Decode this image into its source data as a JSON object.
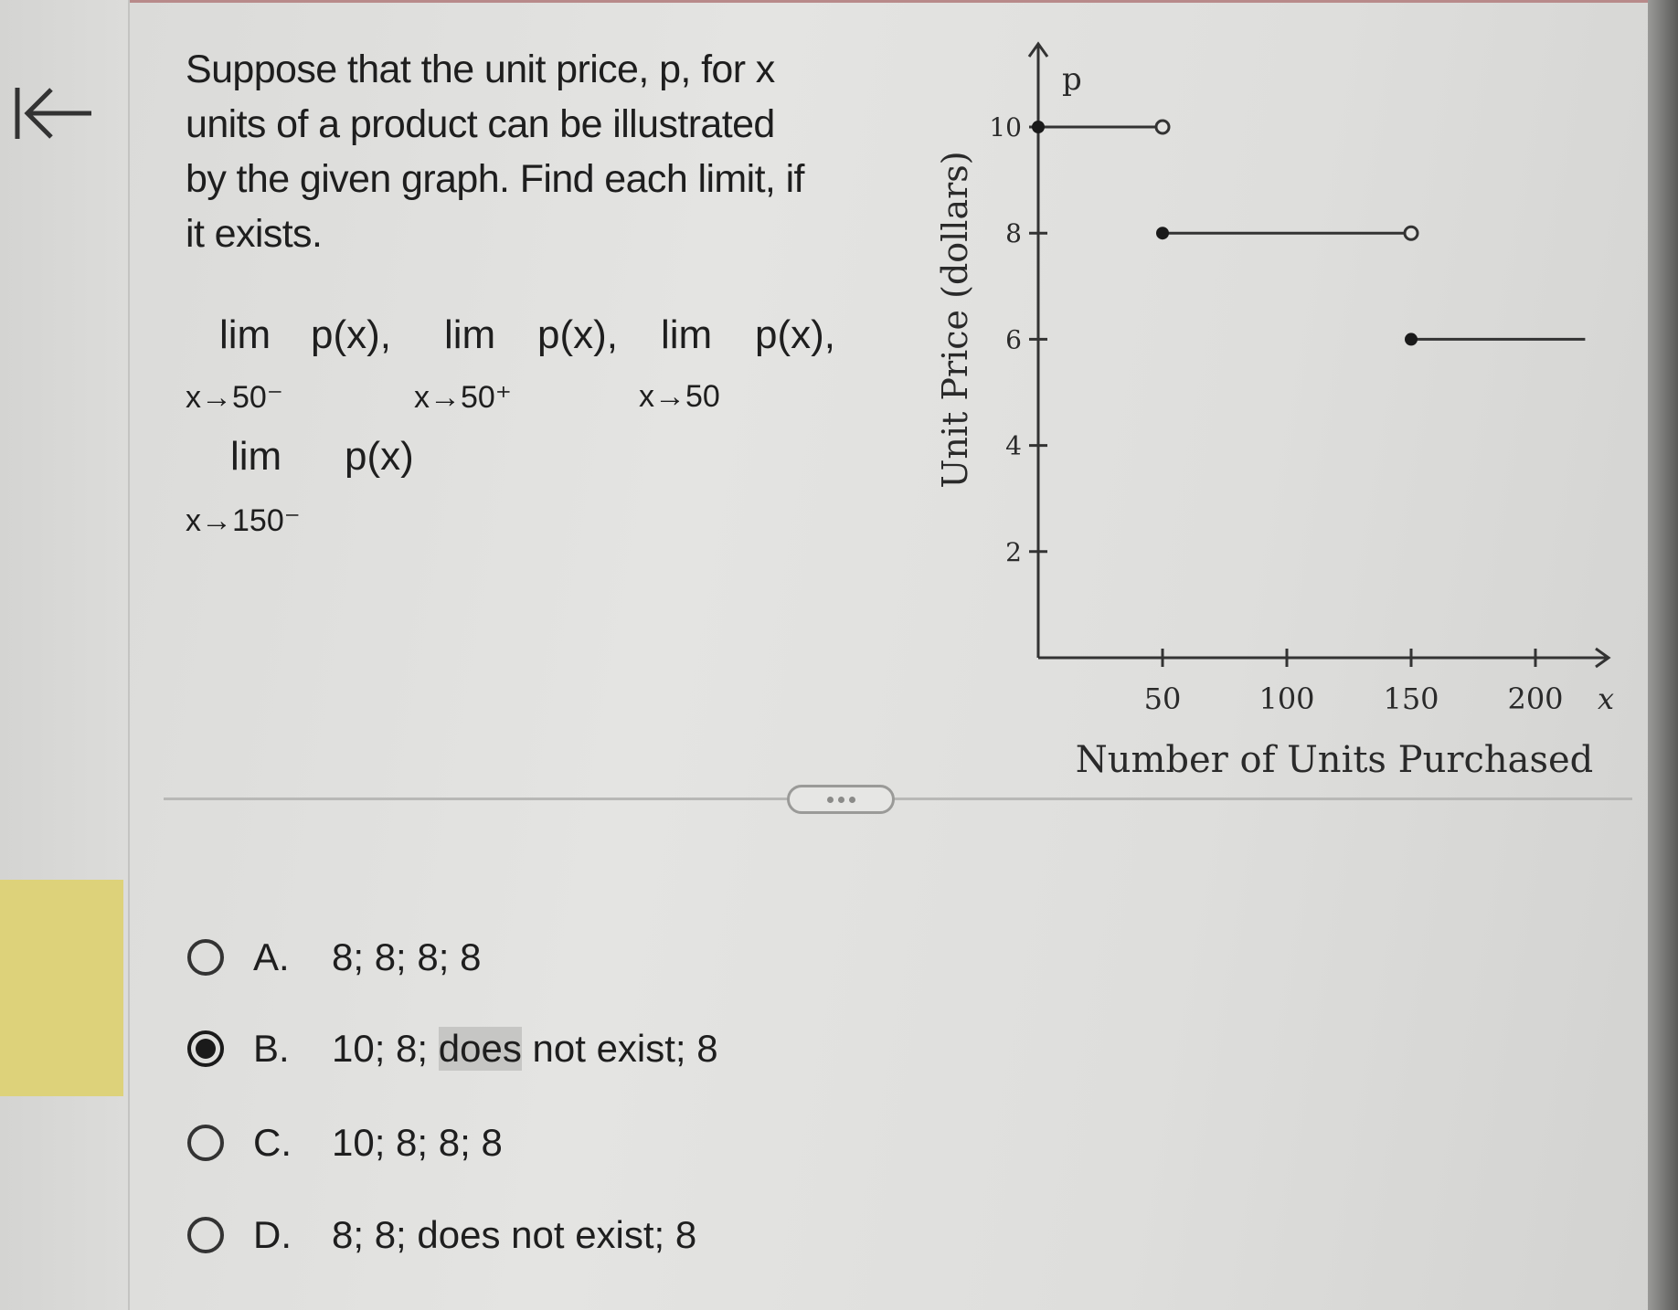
{
  "nav": {
    "back_icon": "collapse-left-arrow-icon"
  },
  "question": {
    "lines": [
      "Suppose that the unit price, p, for x",
      "units of a product can be illustrated",
      "by the given graph. Find each limit, if",
      "it exists."
    ],
    "limits": [
      {
        "lim": "lim",
        "func": "p(x),",
        "sub": "x→50⁻"
      },
      {
        "lim": "lim",
        "func": "p(x),",
        "sub": "x→50⁺"
      },
      {
        "lim": "lim",
        "func": "p(x),",
        "sub": "x→50"
      },
      {
        "lim": "lim",
        "func": "p(x)",
        "sub": "x→150⁻"
      }
    ]
  },
  "options": [
    {
      "letter": "A.",
      "pre": "8; 8; 8; 8",
      "hl": "",
      "post": "",
      "selected": false
    },
    {
      "letter": "B.",
      "pre": "10; 8; ",
      "hl": "does",
      "post": " not exist; 8",
      "selected": true
    },
    {
      "letter": "C.",
      "pre": "10; 8; 8; 8",
      "hl": "",
      "post": "",
      "selected": false
    },
    {
      "letter": "D.",
      "pre": "8; 8; does not exist; 8",
      "hl": "",
      "post": "",
      "selected": false
    }
  ],
  "chart_data": {
    "type": "line",
    "xlabel": "Number of Units Purchased",
    "ylabel": "Unit Price (dollars)",
    "x_axis_name": "x",
    "y_axis_name": "p",
    "xticks": [
      50,
      100,
      150,
      200
    ],
    "yticks": [
      2,
      4,
      6,
      8,
      10
    ],
    "xlim": [
      0,
      220
    ],
    "ylim": [
      0,
      11.5
    ],
    "grid": false,
    "segments": [
      {
        "x": [
          0,
          50
        ],
        "y": 10,
        "start": "closed",
        "end": "open"
      },
      {
        "x": [
          50,
          150
        ],
        "y": 8,
        "start": "closed",
        "end": "open"
      },
      {
        "x": [
          150,
          220
        ],
        "y": 6,
        "start": "closed",
        "end": "none"
      }
    ]
  }
}
